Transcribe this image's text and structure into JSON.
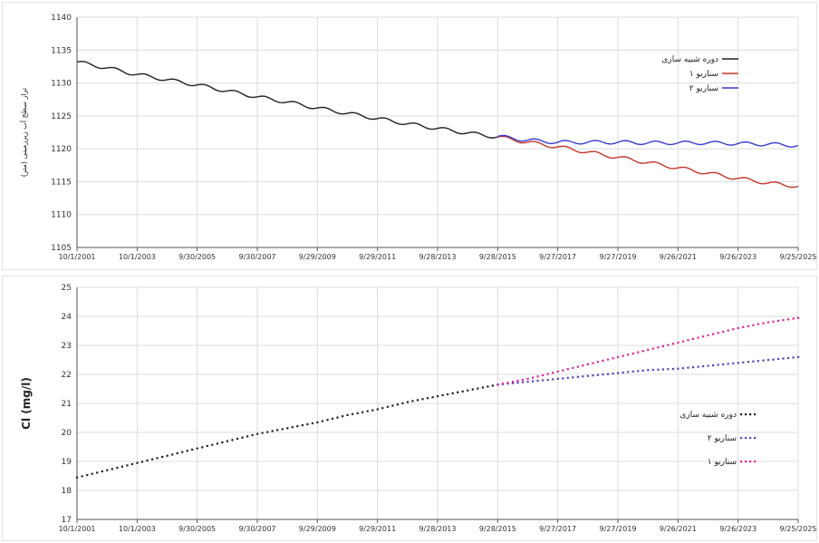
{
  "chart_data": [
    {
      "type": "line",
      "title": "",
      "xlabel": "",
      "ylabel": "تراز سطح آب زیرزمینی (متر)",
      "ylim": [
        1105,
        1140
      ],
      "yticks": [
        "1105",
        "1110",
        "1115",
        "1120",
        "1125",
        "1130",
        "1135",
        "1140"
      ],
      "x_tick_labels": [
        "10/1/2001",
        "10/1/2003",
        "9/30/2005",
        "9/30/2007",
        "9/29/2009",
        "9/29/2011",
        "9/28/2013",
        "9/28/2015",
        "9/27/2017",
        "9/27/2019",
        "9/26/2021",
        "9/26/2023",
        "9/25/2025"
      ],
      "grid": true,
      "legend_position": "top-right",
      "series": [
        {
          "name": "دوره شبیه سازی",
          "color": "#222222",
          "style": "solid",
          "points": [
            [
              "10/1/2001",
              1133.2
            ],
            [
              "10/1/2002",
              1132.3
            ],
            [
              "10/1/2003",
              1131.3
            ],
            [
              "10/1/2004",
              1130.5
            ],
            [
              "9/30/2005",
              1129.7
            ],
            [
              "9/30/2006",
              1128.8
            ],
            [
              "9/30/2007",
              1127.9
            ],
            [
              "9/30/2008",
              1127.1
            ],
            [
              "9/29/2009",
              1126.2
            ],
            [
              "9/29/2010",
              1125.4
            ],
            [
              "9/29/2011",
              1124.6
            ],
            [
              "9/29/2012",
              1123.8
            ],
            [
              "9/28/2013",
              1123.1
            ],
            [
              "9/28/2014",
              1122.4
            ],
            [
              "9/28/2015",
              1121.8
            ]
          ]
        },
        {
          "name": "سناریو ۱",
          "color": "#c0392b",
          "style": "solid",
          "points": [
            [
              "9/28/2015",
              1121.8
            ],
            [
              "9/27/2016",
              1121.0
            ],
            [
              "9/27/2017",
              1120.3
            ],
            [
              "9/27/2018",
              1119.5
            ],
            [
              "9/27/2019",
              1118.7
            ],
            [
              "9/27/2020",
              1117.9
            ],
            [
              "9/26/2021",
              1117.1
            ],
            [
              "9/26/2022",
              1116.3
            ],
            [
              "9/26/2023",
              1115.5
            ],
            [
              "9/26/2024",
              1114.8
            ],
            [
              "9/25/2025",
              1114.3
            ]
          ]
        },
        {
          "name": "سناریو ۲",
          "color": "#3b3bcf",
          "style": "solid",
          "points": [
            [
              "9/28/2015",
              1121.9
            ],
            [
              "9/27/2016",
              1121.3
            ],
            [
              "9/27/2017",
              1121.0
            ],
            [
              "9/27/2018",
              1121.0
            ],
            [
              "9/27/2019",
              1121.0
            ],
            [
              "9/27/2020",
              1120.9
            ],
            [
              "9/26/2021",
              1120.9
            ],
            [
              "9/26/2022",
              1120.9
            ],
            [
              "9/26/2023",
              1120.8
            ],
            [
              "9/26/2024",
              1120.7
            ],
            [
              "9/25/2025",
              1120.5
            ]
          ]
        }
      ]
    },
    {
      "type": "line",
      "title": "",
      "xlabel": "",
      "ylabel": "Cl (mg/l)",
      "ylim": [
        17,
        25
      ],
      "yticks": [
        "17",
        "18",
        "19",
        "20",
        "21",
        "22",
        "23",
        "24",
        "25"
      ],
      "x_tick_labels": [
        "10/1/2001",
        "10/1/2003",
        "9/30/2005",
        "9/30/2007",
        "9/29/2009",
        "9/29/2011",
        "9/28/2013",
        "9/28/2015",
        "9/27/2017",
        "9/27/2019",
        "9/26/2021",
        "9/26/2023",
        "9/25/2025"
      ],
      "grid": true,
      "legend_position": "right",
      "series": [
        {
          "name": "دوره شبیه سازی",
          "color": "#222222",
          "style": "dotted",
          "points": [
            [
              "10/1/2001",
              18.45
            ],
            [
              "10/1/2002",
              18.7
            ],
            [
              "10/1/2003",
              18.95
            ],
            [
              "10/1/2004",
              19.2
            ],
            [
              "9/30/2005",
              19.45
            ],
            [
              "9/30/2006",
              19.7
            ],
            [
              "9/30/2007",
              19.95
            ],
            [
              "9/30/2008",
              20.15
            ],
            [
              "9/29/2009",
              20.35
            ],
            [
              "9/29/2010",
              20.6
            ],
            [
              "9/29/2011",
              20.8
            ],
            [
              "9/29/2012",
              21.05
            ],
            [
              "9/28/2013",
              21.25
            ],
            [
              "9/28/2014",
              21.45
            ],
            [
              "9/28/2015",
              21.65
            ]
          ]
        },
        {
          "name": "سناریو ۲",
          "color": "#5b3fbf",
          "style": "dotted",
          "points": [
            [
              "9/28/2015",
              21.65
            ],
            [
              "9/27/2016",
              21.75
            ],
            [
              "9/27/2017",
              21.85
            ],
            [
              "9/27/2018",
              21.95
            ],
            [
              "9/27/2019",
              22.05
            ],
            [
              "9/27/2020",
              22.15
            ],
            [
              "9/26/2021",
              22.2
            ],
            [
              "9/26/2022",
              22.3
            ],
            [
              "9/26/2023",
              22.4
            ],
            [
              "9/26/2024",
              22.5
            ],
            [
              "9/25/2025",
              22.6
            ]
          ]
        },
        {
          "name": "سناریو ۱",
          "color": "#e0259a",
          "style": "dotted",
          "points": [
            [
              "9/28/2015",
              21.65
            ],
            [
              "9/27/2016",
              21.85
            ],
            [
              "9/27/2017",
              22.1
            ],
            [
              "9/27/2018",
              22.35
            ],
            [
              "9/27/2019",
              22.6
            ],
            [
              "9/27/2020",
              22.85
            ],
            [
              "9/26/2021",
              23.1
            ],
            [
              "9/26/2022",
              23.35
            ],
            [
              "9/26/2023",
              23.6
            ],
            [
              "9/26/2024",
              23.8
            ],
            [
              "9/25/2025",
              23.95
            ]
          ]
        }
      ]
    }
  ]
}
